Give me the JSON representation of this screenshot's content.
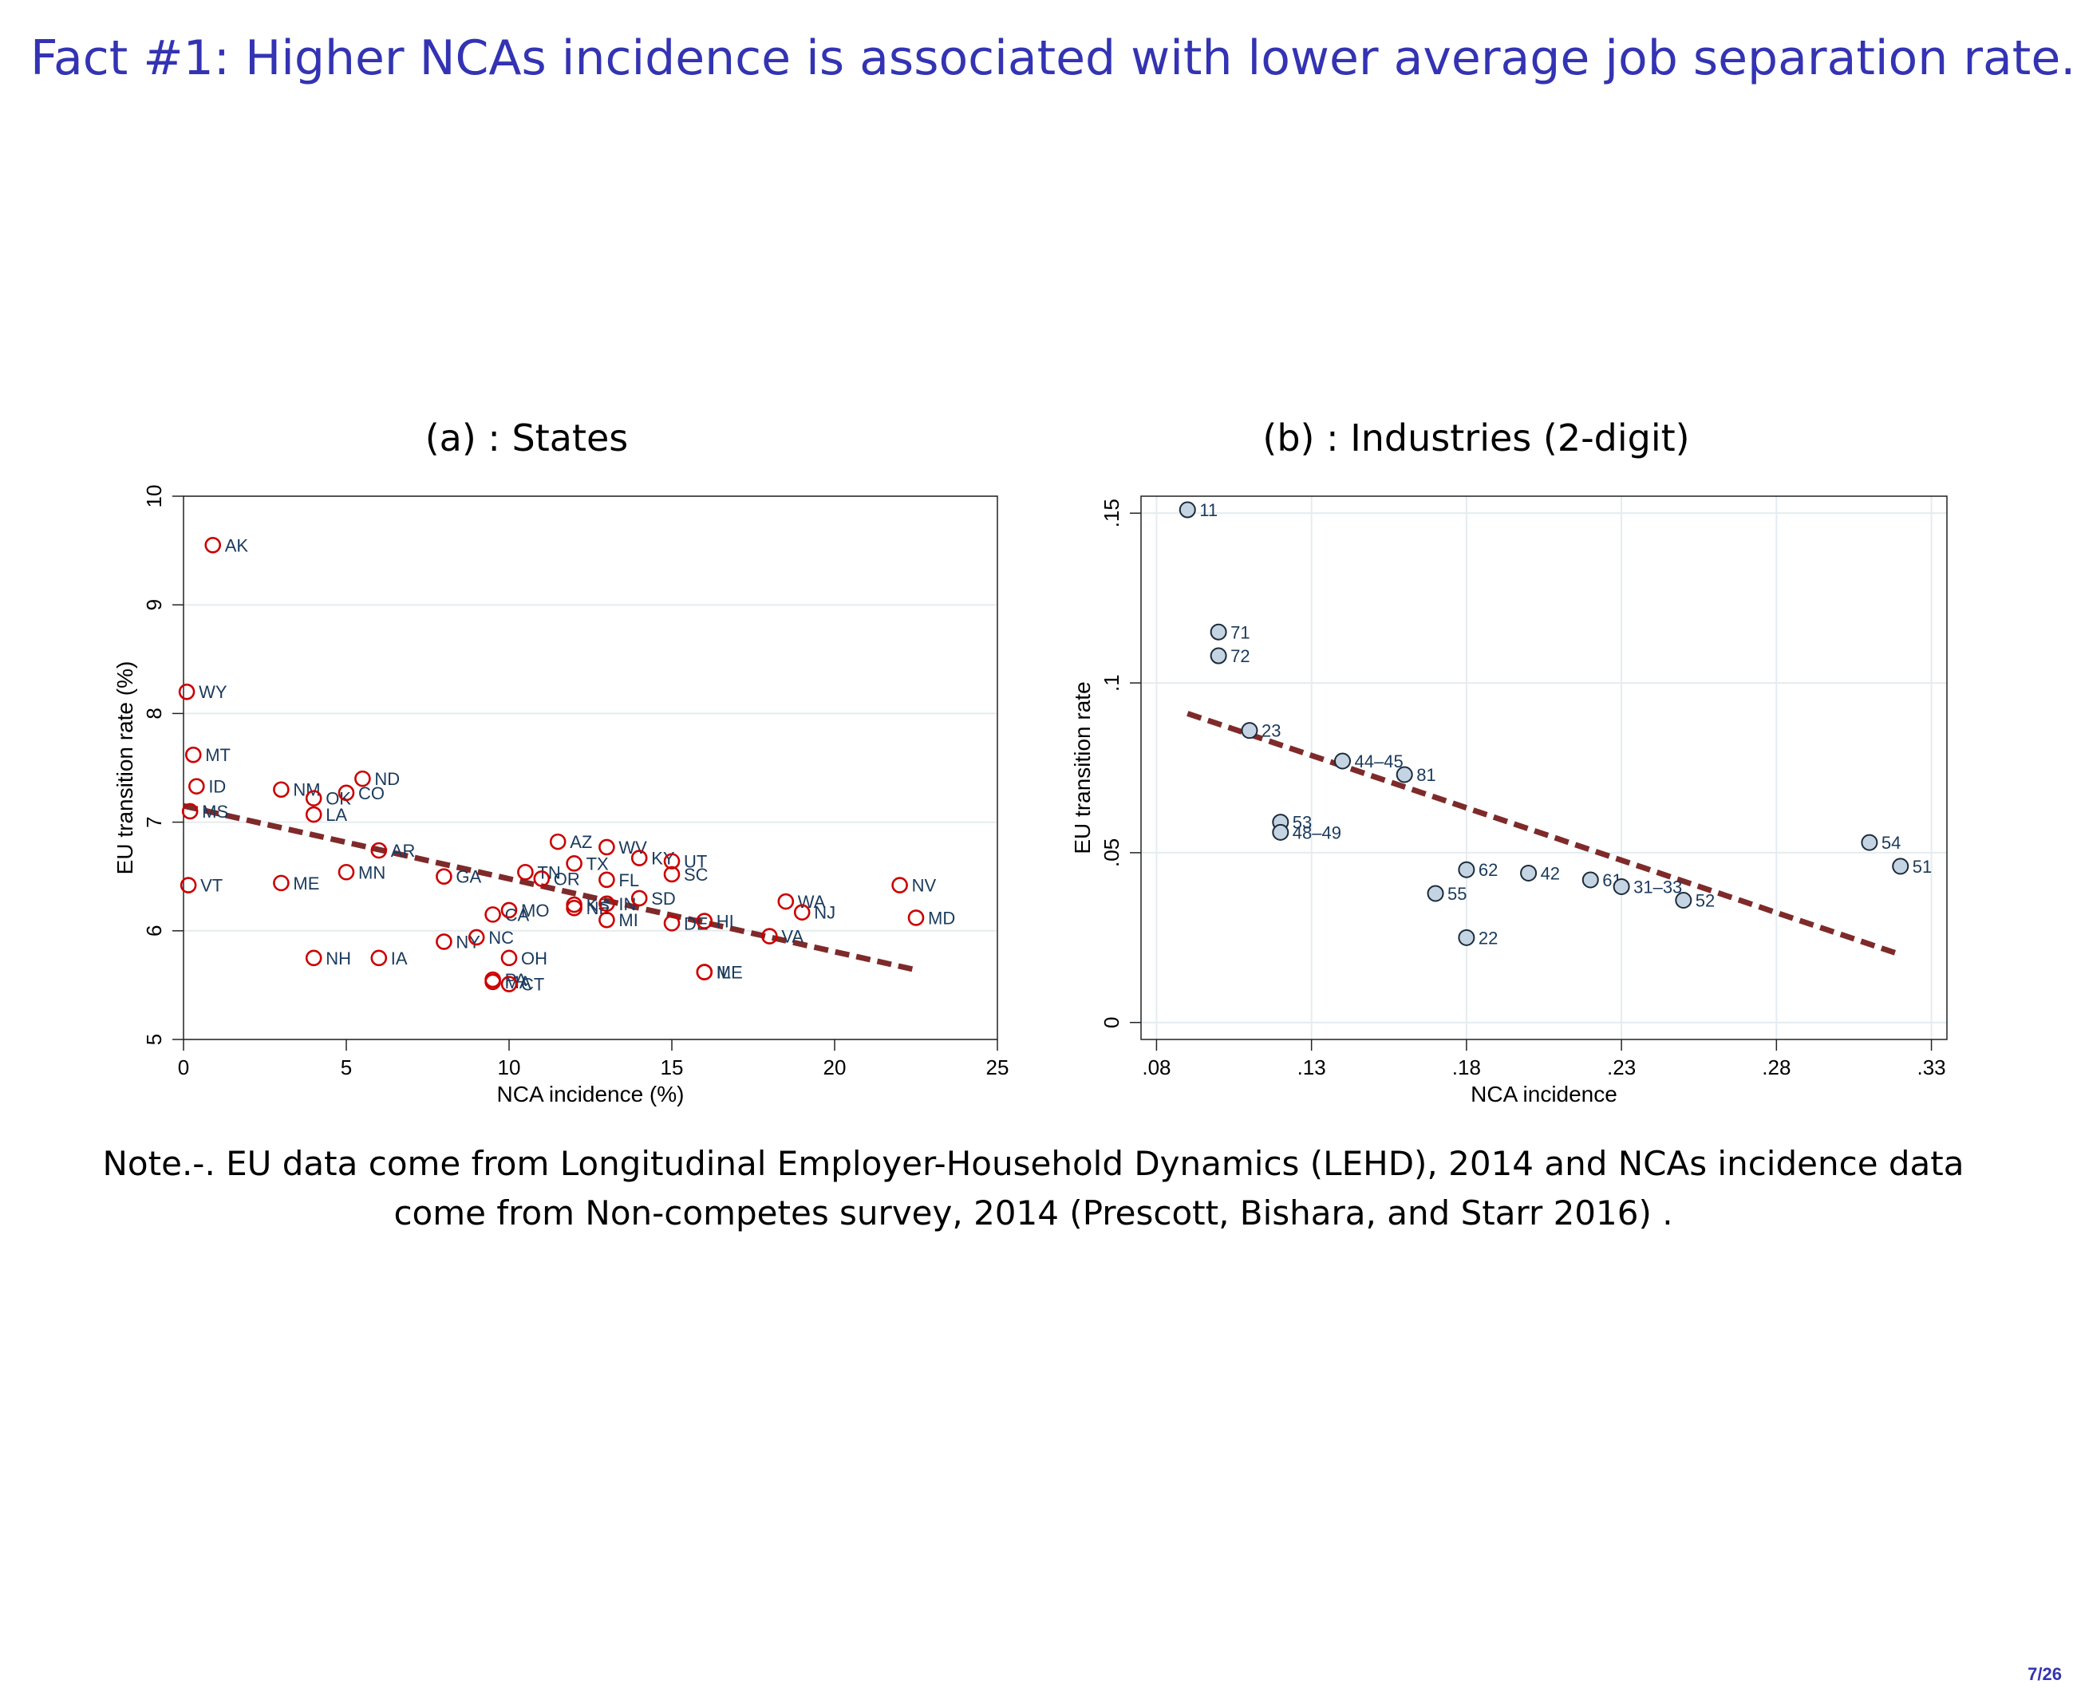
{
  "slide": {
    "title": "Fact #1: Higher NCAs incidence is associated with lower average job separation rate.",
    "note": "Note.-. EU data come from Longitudinal Employer-Household Dynamics (LEHD), 2014 and NCAs incidence data come from Non-competes survey, 2014 (Prescott, Bishara, and Starr 2016) .",
    "page": "7/26"
  },
  "colors": {
    "title": "#3333b3",
    "states_marker": "#cc0000",
    "industry_marker_fill": "#c5d4e2",
    "label": "#1a3a5c",
    "fit_line": "#7f2a2a",
    "grid": "#e4ecef"
  },
  "chart_data": [
    {
      "type": "scatter",
      "title": "(a) : States",
      "xlabel": "NCA incidence (%)",
      "ylabel": "EU transition rate (%)",
      "xlim": [
        0,
        25
      ],
      "ylim": [
        5,
        10
      ],
      "xticks": [
        "0",
        "5",
        "10",
        "15",
        "20",
        "25"
      ],
      "yticks": [
        "5",
        "6",
        "7",
        "8",
        "9",
        "10"
      ],
      "grid": true,
      "marker": "hollow-circle",
      "points": [
        {
          "label": "AK",
          "x": 0.9,
          "y": 9.55
        },
        {
          "label": "WY",
          "x": 0.1,
          "y": 8.2
        },
        {
          "label": "MT",
          "x": 0.3,
          "y": 7.62
        },
        {
          "label": "ID",
          "x": 0.4,
          "y": 7.33
        },
        {
          "label": "MS",
          "x": 0.2,
          "y": 7.1
        },
        {
          "label": "VT",
          "x": 0.15,
          "y": 6.42
        },
        {
          "label": "NM",
          "x": 3.0,
          "y": 7.3
        },
        {
          "label": "ME",
          "x": 3.0,
          "y": 6.44
        },
        {
          "label": "OK",
          "x": 4.0,
          "y": 7.22
        },
        {
          "label": "LA",
          "x": 4.0,
          "y": 7.07
        },
        {
          "label": "CO",
          "x": 5.0,
          "y": 7.27
        },
        {
          "label": "ND",
          "x": 5.5,
          "y": 7.4
        },
        {
          "label": "MN",
          "x": 5.0,
          "y": 6.54
        },
        {
          "label": "AR",
          "x": 6.0,
          "y": 6.74
        },
        {
          "label": "NH",
          "x": 4.0,
          "y": 5.75
        },
        {
          "label": "IA",
          "x": 6.0,
          "y": 5.75
        },
        {
          "label": "GA",
          "x": 8.0,
          "y": 6.5
        },
        {
          "label": "NY",
          "x": 8.0,
          "y": 5.9
        },
        {
          "label": "NC",
          "x": 9.0,
          "y": 5.94
        },
        {
          "label": "CA",
          "x": 9.5,
          "y": 6.15
        },
        {
          "label": "MO",
          "x": 10.0,
          "y": 6.19
        },
        {
          "label": "OH",
          "x": 10.0,
          "y": 5.75
        },
        {
          "label": "PA",
          "x": 9.5,
          "y": 5.55
        },
        {
          "label": "MA",
          "x": 9.5,
          "y": 5.53
        },
        {
          "label": "CT",
          "x": 10.0,
          "y": 5.51
        },
        {
          "label": "TN",
          "x": 10.5,
          "y": 6.54
        },
        {
          "label": "OR",
          "x": 11.0,
          "y": 6.48
        },
        {
          "label": "AZ",
          "x": 11.5,
          "y": 6.82
        },
        {
          "label": "TX",
          "x": 12.0,
          "y": 6.62
        },
        {
          "label": "WV",
          "x": 13.0,
          "y": 6.77
        },
        {
          "label": "FL",
          "x": 13.0,
          "y": 6.47
        },
        {
          "label": "KS",
          "x": 12.0,
          "y": 6.24
        },
        {
          "label": "NE",
          "x": 12.0,
          "y": 6.21
        },
        {
          "label": "IN",
          "x": 13.0,
          "y": 6.25
        },
        {
          "label": "MI",
          "x": 13.0,
          "y": 6.1
        },
        {
          "label": "KY",
          "x": 14.0,
          "y": 6.67
        },
        {
          "label": "SD",
          "x": 14.0,
          "y": 6.3
        },
        {
          "label": "UT",
          "x": 15.0,
          "y": 6.64
        },
        {
          "label": "SC",
          "x": 15.0,
          "y": 6.52
        },
        {
          "label": "DE",
          "x": 15.0,
          "y": 6.07
        },
        {
          "label": "HI",
          "x": 16.0,
          "y": 6.09
        },
        {
          "label": "MD",
          "x": 22.5,
          "y": 6.12
        },
        {
          "label": "NV",
          "x": 22.0,
          "y": 6.42
        },
        {
          "label": "WA",
          "x": 18.5,
          "y": 6.27
        },
        {
          "label": "NJ",
          "x": 19.0,
          "y": 6.17
        },
        {
          "label": "VA",
          "x": 18.0,
          "y": 5.95
        },
        {
          "label": "ME",
          "x": 16.0,
          "y": 5.62
        },
        {
          "label": "IL",
          "x": 16.0,
          "y": 5.62
        }
      ],
      "fit_line": {
        "x": [
          0,
          22.5
        ],
        "y": [
          7.15,
          5.64
        ]
      }
    },
    {
      "type": "scatter",
      "title": "(b) : Industries (2-digit)",
      "xlabel": "NCA incidence",
      "ylabel": "EU transition rate",
      "xlim": [
        0.075,
        0.335
      ],
      "ylim": [
        -0.005,
        0.155
      ],
      "xticks": [
        ".08",
        ".13",
        ".18",
        ".23",
        ".28",
        ".33"
      ],
      "yticks": [
        "0",
        ".05",
        ".1",
        ".15"
      ],
      "grid": true,
      "marker": "filled-circle",
      "points": [
        {
          "label": "11",
          "x": 0.09,
          "y": 0.151
        },
        {
          "label": "71",
          "x": 0.1,
          "y": 0.115
        },
        {
          "label": "72",
          "x": 0.1,
          "y": 0.108
        },
        {
          "label": "23",
          "x": 0.11,
          "y": 0.086
        },
        {
          "label": "44–45",
          "x": 0.14,
          "y": 0.077
        },
        {
          "label": "81",
          "x": 0.16,
          "y": 0.073
        },
        {
          "label": "53",
          "x": 0.12,
          "y": 0.059
        },
        {
          "label": "48–49",
          "x": 0.12,
          "y": 0.056
        },
        {
          "label": "62",
          "x": 0.18,
          "y": 0.045
        },
        {
          "label": "42",
          "x": 0.2,
          "y": 0.044
        },
        {
          "label": "55",
          "x": 0.17,
          "y": 0.038
        },
        {
          "label": "61",
          "x": 0.22,
          "y": 0.042
        },
        {
          "label": "31–33",
          "x": 0.23,
          "y": 0.04
        },
        {
          "label": "52",
          "x": 0.25,
          "y": 0.036
        },
        {
          "label": "22",
          "x": 0.18,
          "y": 0.025
        },
        {
          "label": "54",
          "x": 0.31,
          "y": 0.053
        },
        {
          "label": "51",
          "x": 0.32,
          "y": 0.046
        }
      ],
      "fit_line": {
        "x": [
          0.09,
          0.32
        ],
        "y": [
          0.091,
          0.02
        ]
      }
    }
  ]
}
